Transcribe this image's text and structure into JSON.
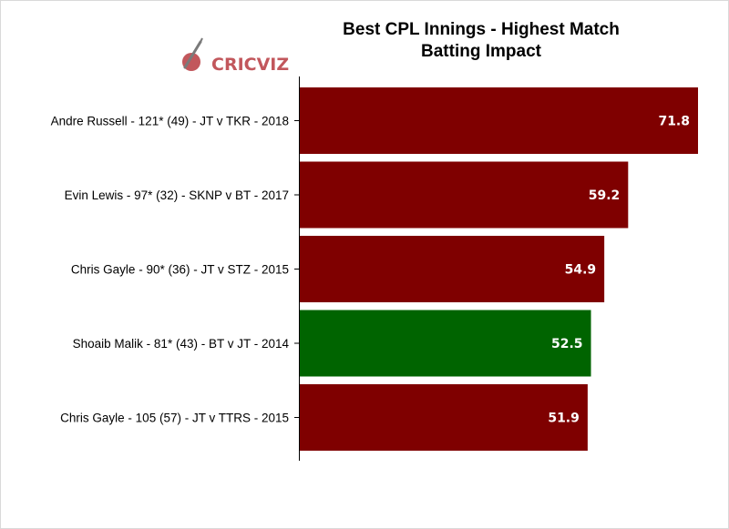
{
  "chart_data": {
    "type": "bar",
    "orientation": "horizontal",
    "title": "Best CPL Innings - Highest Match Batting Impact",
    "title_lines": [
      "Best CPL Innings - Highest Match",
      "Batting Impact"
    ],
    "xlabel": "",
    "ylabel": "",
    "xlim": [
      0,
      75
    ],
    "grid": false,
    "categories": [
      "Andre Russell - 121* (49) - JT v TKR - 2018",
      "Evin Lewis - 97* (32) - SKNP v BT - 2017",
      "Chris Gayle - 90* (36) - JT v STZ - 2015",
      "Shoaib Malik - 81* (43) - BT v JT - 2014",
      "Chris Gayle - 105 (57) - JT v TTRS - 2015"
    ],
    "values": [
      71.8,
      59.2,
      54.9,
      52.5,
      51.9
    ],
    "value_labels": [
      "71.8",
      "59.2",
      "54.9",
      "52.5",
      "51.9"
    ],
    "colors": [
      "#7f0000",
      "#7f0000",
      "#7f0000",
      "#006400",
      "#7f0000"
    ]
  },
  "branding": {
    "logo_text": "CRICVIZ",
    "logo_color": "#c2575c"
  }
}
